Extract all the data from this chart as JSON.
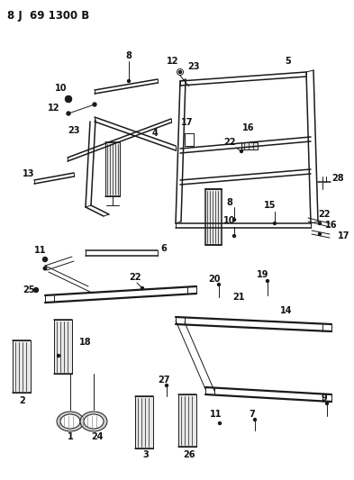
{
  "title": "8 J  69 1300 B",
  "bg_color": "#ffffff",
  "line_color": "#1a1a1a",
  "text_color": "#111111",
  "title_fontsize": 8.5,
  "label_fontsize": 7,
  "figsize": [
    3.93,
    5.33
  ],
  "dpi": 100
}
